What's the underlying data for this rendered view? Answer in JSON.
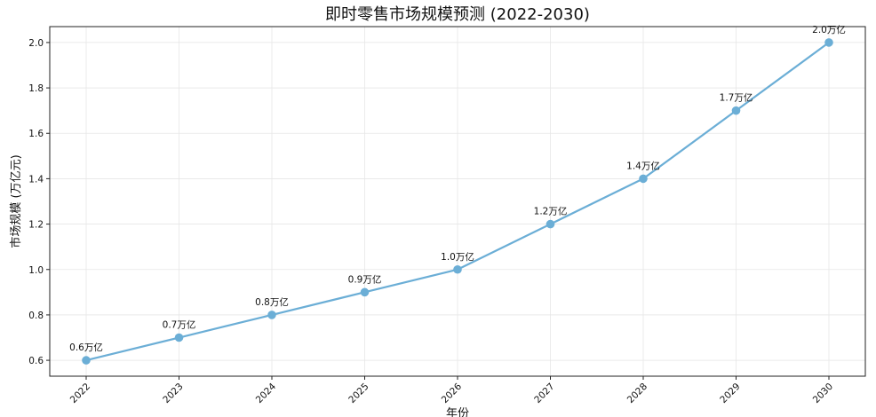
{
  "chart_data": {
    "type": "line",
    "title": "即时零售市场规模预测 (2022-2030)",
    "xlabel": "年份",
    "ylabel": "市场规模 (万亿元)",
    "x": [
      "2022",
      "2023",
      "2024",
      "2025",
      "2026",
      "2027",
      "2028",
      "2029",
      "2030"
    ],
    "series": [
      {
        "values": [
          0.6,
          0.7,
          0.8,
          0.9,
          1.0,
          1.2,
          1.4,
          1.7,
          2.0
        ],
        "color": "#6baed6"
      }
    ],
    "data_labels": [
      "0.6万亿",
      "0.7万亿",
      "0.8万亿",
      "0.9万亿",
      "1.0万亿",
      "1.2万亿",
      "1.4万亿",
      "1.7万亿",
      "2.0万亿"
    ],
    "yticks": [
      "0.6",
      "0.8",
      "1.0",
      "1.2",
      "1.4",
      "1.6",
      "1.8",
      "2.0"
    ],
    "ylim": [
      0.53,
      2.07
    ],
    "grid": true,
    "legend": "none"
  }
}
